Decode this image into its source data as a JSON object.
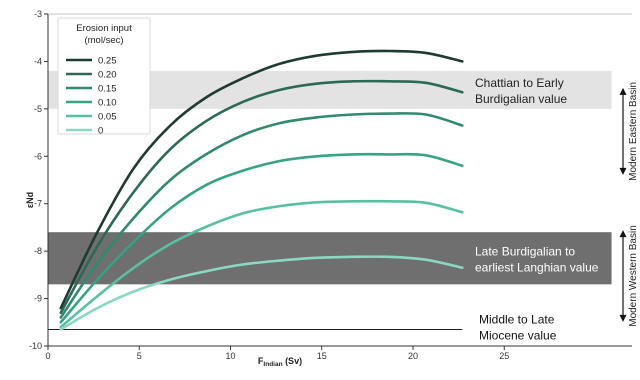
{
  "chart_data": {
    "type": "line",
    "xlabel_main": "F",
    "xlabel_sub": "Indian",
    "xlabel_unit": " (Sv)",
    "ylabel": "εNd",
    "xlim": [
      0,
      32
    ],
    "ylim": [
      -10,
      -3
    ],
    "xticks": [
      0,
      5,
      10,
      15,
      20,
      25
    ],
    "yticks": [
      -3,
      -4,
      -5,
      -6,
      -7,
      -8,
      -9,
      -10
    ],
    "x": [
      0.7,
      2.7,
      4.7,
      6.7,
      8.7,
      10.7,
      12.7,
      14.7,
      16.7,
      18.7,
      20.7,
      22.7
    ],
    "legend": {
      "title_line1": "Erosion input",
      "title_line2": "(mol/sec)",
      "placement": "top-left"
    },
    "series": [
      {
        "name": "0.25",
        "color": "#1d3b33",
        "values": [
          -9.2,
          -7.6,
          -6.25,
          -5.35,
          -4.75,
          -4.35,
          -4.05,
          -3.88,
          -3.8,
          -3.78,
          -3.82,
          -4.0
        ]
      },
      {
        "name": "0.20",
        "color": "#2a6a57",
        "values": [
          -9.3,
          -7.9,
          -6.75,
          -5.85,
          -5.25,
          -4.85,
          -4.6,
          -4.47,
          -4.42,
          -4.42,
          -4.45,
          -4.65
        ]
      },
      {
        "name": "0.15",
        "color": "#2f8a70",
        "values": [
          -9.4,
          -8.25,
          -7.3,
          -6.5,
          -5.95,
          -5.55,
          -5.3,
          -5.18,
          -5.12,
          -5.1,
          -5.12,
          -5.35
        ]
      },
      {
        "name": "0.10",
        "color": "#36a384",
        "values": [
          -9.5,
          -8.6,
          -7.8,
          -7.1,
          -6.6,
          -6.3,
          -6.1,
          -6.0,
          -5.96,
          -5.96,
          -5.98,
          -6.2
        ]
      },
      {
        "name": "0.05",
        "color": "#57c0a3",
        "values": [
          -9.6,
          -8.95,
          -8.35,
          -7.85,
          -7.48,
          -7.2,
          -7.05,
          -6.97,
          -6.95,
          -6.95,
          -6.98,
          -7.18
        ]
      },
      {
        "name": "0",
        "color": "#8ad8c4",
        "values": [
          -9.65,
          -9.2,
          -8.85,
          -8.6,
          -8.42,
          -8.28,
          -8.2,
          -8.14,
          -8.12,
          -8.12,
          -8.18,
          -8.35
        ]
      }
    ],
    "bands": [
      {
        "label_line1": "Chattian to Early",
        "label_line2": "Burdigalian value",
        "y_top": -4.2,
        "y_bottom": -5.0,
        "fill": "#e3e3e3",
        "text_color": "#222222"
      },
      {
        "label_line1": "Late Burdigalian to",
        "label_line2": "earliest Langhian value",
        "y_top": -7.6,
        "y_bottom": -8.7,
        "fill": "#6f6f6f",
        "text_color": "#ffffff"
      }
    ],
    "reference_line": {
      "label_line1": "Middle to Late",
      "label_line2": "Miocene value",
      "y": -9.65,
      "color": "#000000"
    },
    "ranges": [
      {
        "label": "Modern Eastern Basin",
        "y_top": -4.6,
        "y_bottom": -6.35
      },
      {
        "label": "Modern Western Basin",
        "y_top": -7.6,
        "y_bottom": -9.45
      }
    ]
  }
}
